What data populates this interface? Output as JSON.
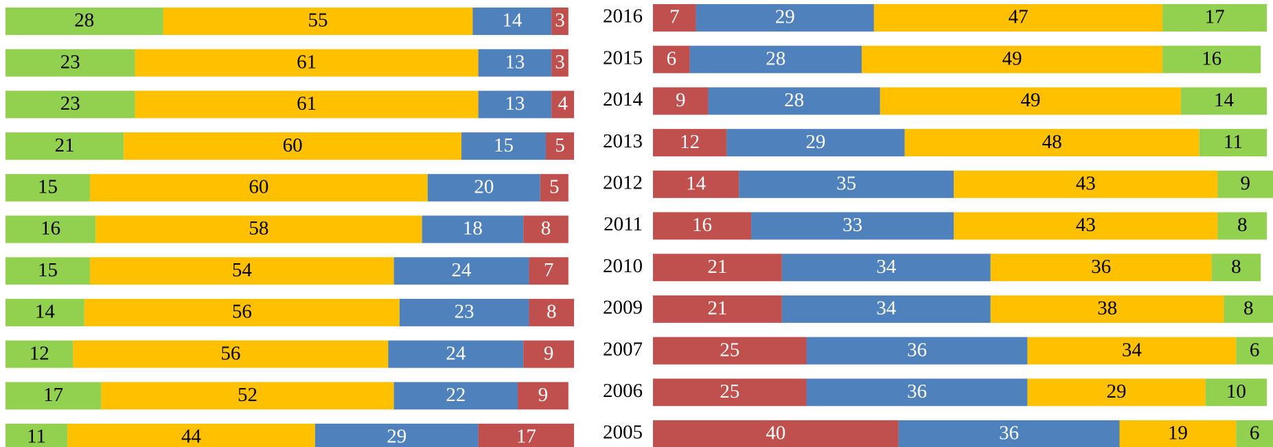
{
  "chart_data": [
    {
      "type": "stacked-bar-horizontal",
      "categories": [
        null,
        null,
        null,
        null,
        null,
        null,
        null,
        null,
        null,
        null,
        null
      ],
      "xlim": [
        0,
        101
      ],
      "series": [
        {
          "color": "#92d050",
          "values": [
            28,
            23,
            23,
            21,
            15,
            16,
            15,
            14,
            12,
            17,
            11
          ]
        },
        {
          "color": "#ffc000",
          "values": [
            55,
            61,
            61,
            60,
            60,
            58,
            54,
            56,
            56,
            52,
            44
          ]
        },
        {
          "color": "#4f81bd",
          "values": [
            14,
            13,
            13,
            15,
            20,
            18,
            24,
            23,
            24,
            22,
            29
          ]
        },
        {
          "color": "#c0504d",
          "values": [
            3,
            3,
            4,
            5,
            5,
            8,
            7,
            8,
            9,
            9,
            17
          ]
        }
      ]
    },
    {
      "type": "stacked-bar-horizontal",
      "categories": [
        "2016",
        "2015",
        "2014",
        "2013",
        "2012",
        "2011",
        "2010",
        "2009",
        "2007",
        "2006",
        "2005"
      ],
      "xlim": [
        0,
        101
      ],
      "series": [
        {
          "color": "#c0504d",
          "values": [
            7,
            6,
            9,
            12,
            14,
            16,
            21,
            21,
            25,
            25,
            40
          ]
        },
        {
          "color": "#4f81bd",
          "values": [
            29,
            28,
            28,
            29,
            35,
            33,
            34,
            34,
            36,
            36,
            36
          ]
        },
        {
          "color": "#ffc000",
          "values": [
            47,
            49,
            49,
            48,
            43,
            43,
            36,
            38,
            34,
            29,
            19
          ]
        },
        {
          "color": "#92d050",
          "values": [
            17,
            16,
            14,
            11,
            9,
            8,
            8,
            8,
            6,
            10,
            6
          ]
        }
      ]
    }
  ]
}
